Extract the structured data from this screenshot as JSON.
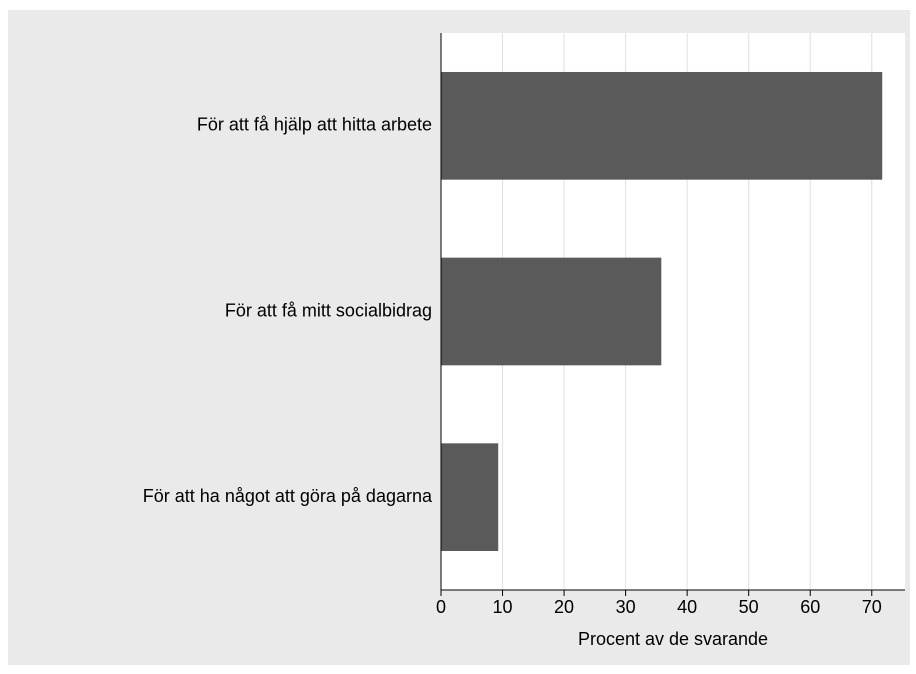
{
  "chart_data": {
    "type": "hbar",
    "categories": [
      "För att få hjälp att hitta arbete",
      "För att få mitt socialbidrag",
      "För att ha något att göra på dagarna"
    ],
    "values": [
      71.7,
      35.8,
      9.3
    ],
    "color": "#5a5a5a",
    "xlabel": "Procent av de svarande",
    "xlim": [
      0,
      75.4
    ],
    "xticks": [
      0,
      10,
      20,
      30,
      40,
      50,
      60,
      70
    ],
    "grid": true
  }
}
